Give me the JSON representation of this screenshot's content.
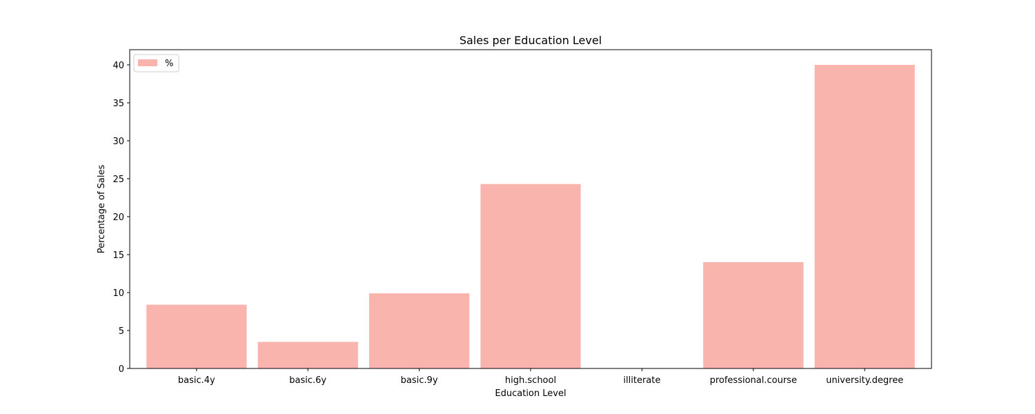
{
  "chart_data": {
    "type": "bar",
    "title": "Sales per Education Level",
    "xlabel": "Education Level",
    "ylabel": "Percentage of Sales",
    "categories": [
      "basic.4y",
      "basic.6y",
      "basic.9y",
      "high.school",
      "illiterate",
      "professional.course",
      "university.degree"
    ],
    "series": [
      {
        "name": "%",
        "values": [
          8.4,
          3.5,
          9.9,
          24.3,
          0.05,
          14.0,
          40.0
        ],
        "color": "#fab4ae"
      }
    ],
    "ylim": [
      0,
      42
    ],
    "yticks": [
      0,
      5,
      10,
      15,
      20,
      25,
      30,
      35,
      40
    ],
    "grid": false,
    "legend_position": "top-left"
  }
}
